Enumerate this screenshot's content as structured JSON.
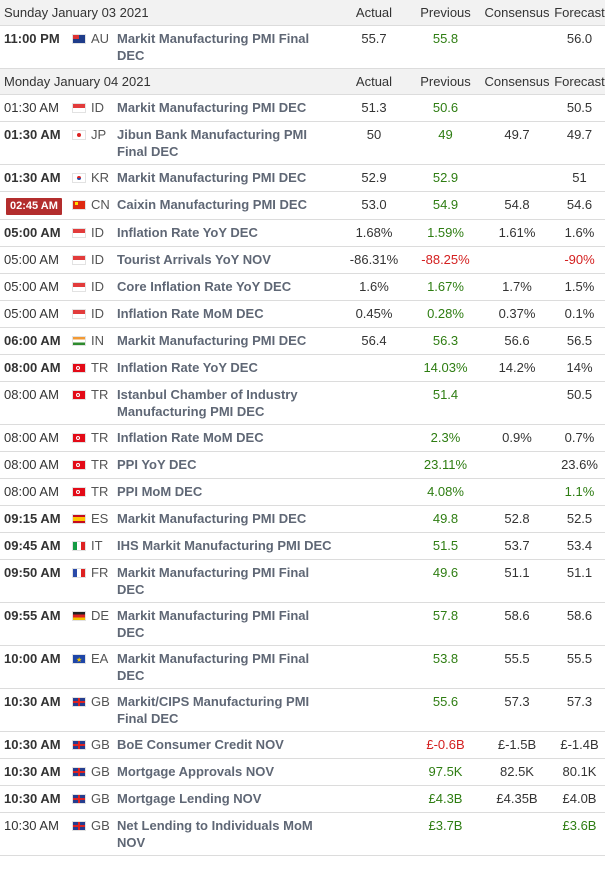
{
  "columns": {
    "actual": "Actual",
    "previous": "Previous",
    "consensus": "Consensus",
    "forecast": "Forecast"
  },
  "day1": {
    "title": "Sunday January 03 2021",
    "events": [
      {
        "time": "11:00 PM",
        "bold": true,
        "flag": "au",
        "country": "AU",
        "event": "Markit Manufacturing PMI Final DEC",
        "actual": "55.7",
        "previous": "55.8",
        "prev_color": "green",
        "consensus": "",
        "forecast": "56.0"
      }
    ]
  },
  "day2": {
    "title": "Monday January 04 2021",
    "events": [
      {
        "time": "01:30 AM",
        "flag": "id",
        "country": "ID",
        "event": "Markit Manufacturing PMI DEC",
        "actual": "51.3",
        "previous": "50.6",
        "prev_color": "green",
        "consensus": "",
        "forecast": "50.5"
      },
      {
        "time": "01:30 AM",
        "bold": true,
        "flag": "jp",
        "country": "JP",
        "event": "Jibun Bank Manufacturing PMI Final DEC",
        "actual": "50",
        "previous": "49",
        "prev_color": "green",
        "consensus": "49.7",
        "forecast": "49.7"
      },
      {
        "time": "01:30 AM",
        "bold": true,
        "flag": "kr",
        "country": "KR",
        "event": "Markit Manufacturing PMI DEC",
        "actual": "52.9",
        "previous": "52.9",
        "prev_color": "green",
        "consensus": "",
        "forecast": "51"
      },
      {
        "time": "02:45 AM",
        "live": true,
        "flag": "cn",
        "country": "CN",
        "event": "Caixin Manufacturing PMI DEC",
        "actual": "53.0",
        "previous": "54.9",
        "prev_color": "green",
        "consensus": "54.8",
        "forecast": "54.6"
      },
      {
        "time": "05:00 AM",
        "bold": true,
        "flag": "id",
        "country": "ID",
        "event": "Inflation Rate YoY DEC",
        "actual": "1.68%",
        "previous": "1.59%",
        "prev_color": "green",
        "consensus": "1.61%",
        "forecast": "1.6%"
      },
      {
        "time": "05:00 AM",
        "flag": "id",
        "country": "ID",
        "event": "Tourist Arrivals YoY NOV",
        "actual": "-86.31%",
        "previous": "-88.25%",
        "prev_color": "red",
        "consensus": "",
        "forecast": "-90%",
        "fcst_color": "red"
      },
      {
        "time": "05:00 AM",
        "flag": "id",
        "country": "ID",
        "event": "Core Inflation Rate YoY DEC",
        "actual": "1.6%",
        "previous": "1.67%",
        "prev_color": "green",
        "consensus": "1.7%",
        "forecast": "1.5%"
      },
      {
        "time": "05:00 AM",
        "flag": "id",
        "country": "ID",
        "event": "Inflation Rate MoM DEC",
        "actual": "0.45%",
        "previous": "0.28%",
        "prev_color": "green",
        "consensus": "0.37%",
        "forecast": "0.1%"
      },
      {
        "time": "06:00 AM",
        "bold": true,
        "flag": "in",
        "country": "IN",
        "event": "Markit Manufacturing PMI DEC",
        "actual": "56.4",
        "previous": "56.3",
        "prev_color": "green",
        "consensus": "56.6",
        "forecast": "56.5"
      },
      {
        "time": "08:00 AM",
        "bold": true,
        "flag": "tr",
        "country": "TR",
        "event": "Inflation Rate YoY DEC",
        "actual": "",
        "previous": "14.03%",
        "prev_color": "green",
        "consensus": "14.2%",
        "forecast": "14%"
      },
      {
        "time": "08:00 AM",
        "flag": "tr",
        "country": "TR",
        "event": "Istanbul Chamber of Industry Manufacturing PMI DEC",
        "actual": "",
        "previous": "51.4",
        "prev_color": "green",
        "consensus": "",
        "forecast": "50.5"
      },
      {
        "time": "08:00 AM",
        "flag": "tr",
        "country": "TR",
        "event": "Inflation Rate MoM DEC",
        "actual": "",
        "previous": "2.3%",
        "prev_color": "green",
        "consensus": "0.9%",
        "forecast": "0.7%"
      },
      {
        "time": "08:00 AM",
        "flag": "tr",
        "country": "TR",
        "event": "PPI YoY DEC",
        "actual": "",
        "previous": "23.11%",
        "prev_color": "green",
        "consensus": "",
        "forecast": "23.6%"
      },
      {
        "time": "08:00 AM",
        "flag": "tr",
        "country": "TR",
        "event": "PPI MoM DEC",
        "actual": "",
        "previous": "4.08%",
        "prev_color": "green",
        "consensus": "",
        "forecast": "1.1%",
        "fcst_color": "green"
      },
      {
        "time": "09:15 AM",
        "bold": true,
        "flag": "es",
        "country": "ES",
        "event": "Markit Manufacturing PMI DEC",
        "actual": "",
        "previous": "49.8",
        "prev_color": "green",
        "consensus": "52.8",
        "forecast": "52.5"
      },
      {
        "time": "09:45 AM",
        "bold": true,
        "flag": "it",
        "country": "IT",
        "event": "IHS Markit Manufacturing PMI DEC",
        "actual": "",
        "previous": "51.5",
        "prev_color": "green",
        "consensus": "53.7",
        "forecast": "53.4"
      },
      {
        "time": "09:50 AM",
        "bold": true,
        "flag": "fr",
        "country": "FR",
        "event": "Markit Manufacturing PMI Final DEC",
        "actual": "",
        "previous": "49.6",
        "prev_color": "green",
        "consensus": "51.1",
        "forecast": "51.1"
      },
      {
        "time": "09:55 AM",
        "bold": true,
        "flag": "de",
        "country": "DE",
        "event": "Markit Manufacturing PMI Final DEC",
        "actual": "",
        "previous": "57.8",
        "prev_color": "green",
        "consensus": "58.6",
        "forecast": "58.6"
      },
      {
        "time": "10:00 AM",
        "bold": true,
        "flag": "ea",
        "country": "EA",
        "event": "Markit Manufacturing PMI Final DEC",
        "actual": "",
        "previous": "53.8",
        "prev_color": "green",
        "consensus": "55.5",
        "forecast": "55.5"
      },
      {
        "time": "10:30 AM",
        "bold": true,
        "flag": "gb",
        "country": "GB",
        "event": "Markit/CIPS Manufacturing PMI Final DEC",
        "actual": "",
        "previous": "55.6",
        "prev_color": "green",
        "consensus": "57.3",
        "forecast": "57.3"
      },
      {
        "time": "10:30 AM",
        "bold": true,
        "flag": "gb",
        "country": "GB",
        "event": "BoE Consumer Credit NOV",
        "actual": "",
        "previous": "£-0.6B",
        "prev_color": "red",
        "consensus": "£-1.5B",
        "forecast": "£-1.4B"
      },
      {
        "time": "10:30 AM",
        "bold": true,
        "flag": "gb",
        "country": "GB",
        "event": "Mortgage Approvals NOV",
        "actual": "",
        "previous": "97.5K",
        "prev_color": "green",
        "consensus": "82.5K",
        "forecast": "80.1K"
      },
      {
        "time": "10:30 AM",
        "bold": true,
        "flag": "gb",
        "country": "GB",
        "event": "Mortgage Lending NOV",
        "actual": "",
        "previous": "£4.3B",
        "prev_color": "green",
        "consensus": "£4.35B",
        "forecast": "£4.0B"
      },
      {
        "time": "10:30 AM",
        "flag": "gb",
        "country": "GB",
        "event": "Net Lending to Individuals MoM NOV",
        "actual": "",
        "previous": "£3.7B",
        "prev_color": "green",
        "consensus": "",
        "forecast": "£3.6B",
        "fcst_color": "green"
      }
    ]
  }
}
